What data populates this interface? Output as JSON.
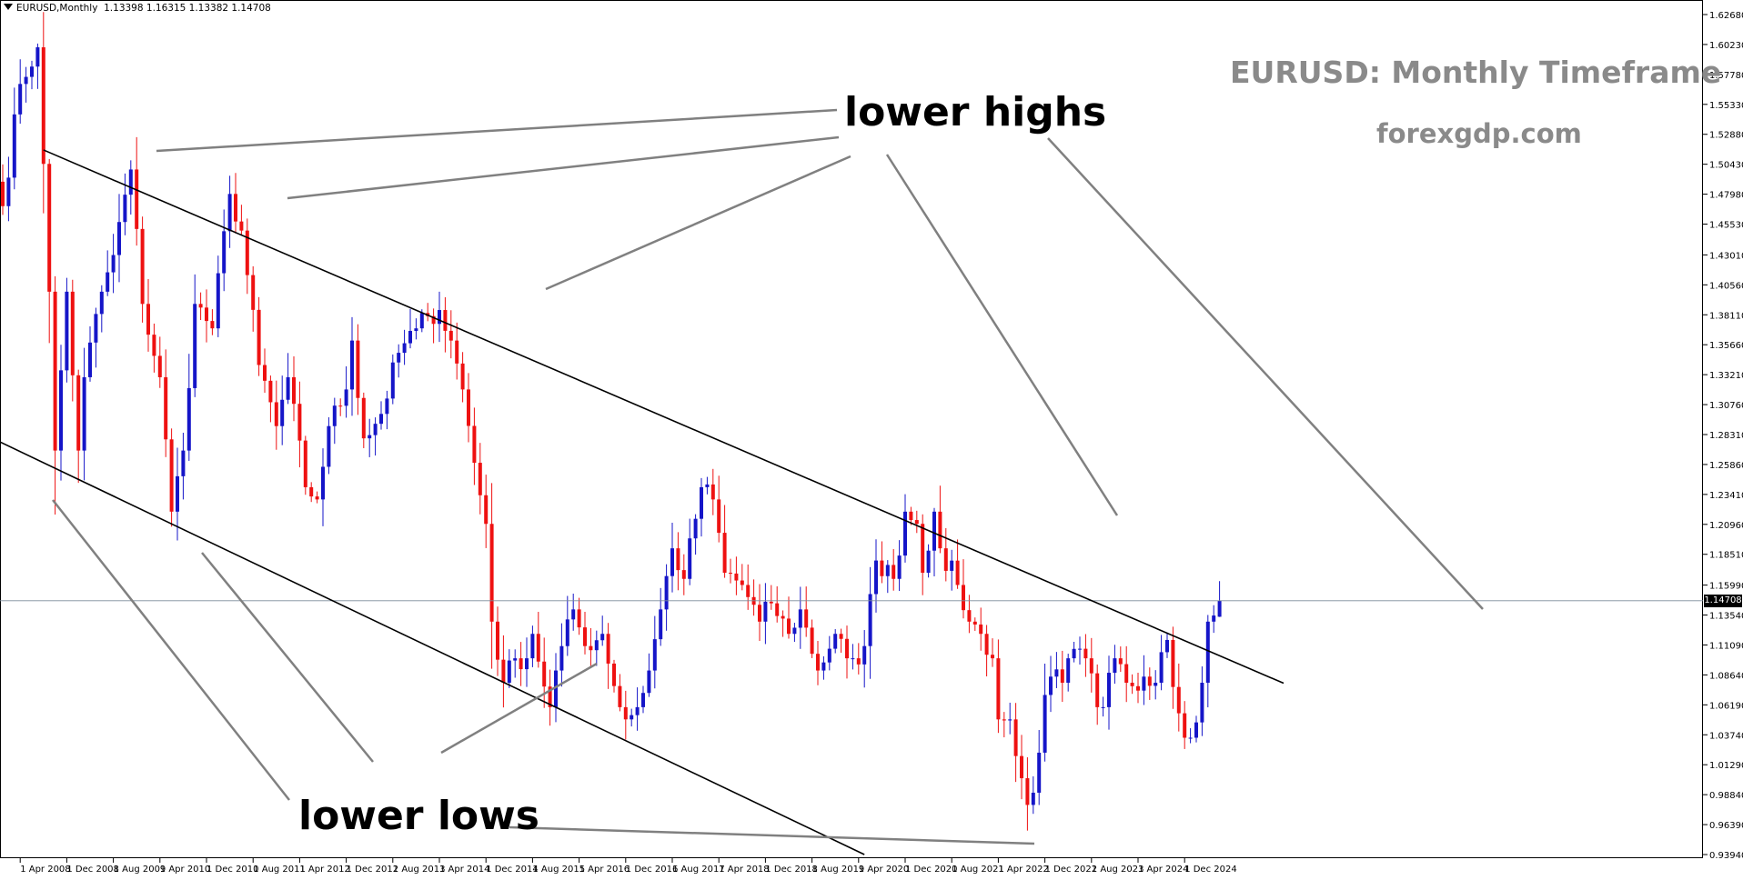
{
  "header": {
    "symbol_label": "EURUSD,Monthly",
    "ohlc_label": "1.13398 1.16315 1.13382 1.14708"
  },
  "annotations": {
    "title": "EURUSD: Monthly Timeframe",
    "subtitle": "forexgdp.com",
    "lower_highs": "lower highs",
    "lower_lows": "lower lows"
  },
  "colors": {
    "bull": "#1515c8",
    "bear": "#ee1111",
    "trendline": "#000000",
    "pointer": "#808080",
    "title": "#8a8a8a"
  },
  "chart_data": {
    "type": "candlestick",
    "title": "EURUSD: Monthly Timeframe",
    "timeframe": "Monthly",
    "ylim": [
      0.9394,
      1.6268
    ],
    "y_ticks": [
      "1.62680",
      "1.60230",
      "1.57780",
      "1.55330",
      "1.52880",
      "1.50430",
      "1.47980",
      "1.45530",
      "1.43010",
      "1.40560",
      "1.38110",
      "1.35660",
      "1.33210",
      "1.30760",
      "1.28310",
      "1.25860",
      "1.23410",
      "1.20960",
      "1.18510",
      "1.15990",
      "1.13540",
      "1.11090",
      "1.08640",
      "1.06190",
      "1.03740",
      "1.01290",
      "0.98840",
      "0.96390",
      "0.93940"
    ],
    "x_ticks": [
      "1 Apr 2008",
      "1 Dec 2008",
      "1 Aug 2009",
      "1 Apr 2010",
      "1 Dec 2010",
      "1 Aug 2011",
      "1 Apr 2012",
      "1 Dec 2012",
      "1 Aug 2013",
      "1 Apr 2014",
      "1 Dec 2014",
      "1 Aug 2015",
      "1 Apr 2016",
      "1 Dec 2016",
      "1 Aug 2017",
      "1 Apr 2018",
      "1 Dec 2018",
      "1 Aug 2019",
      "1 Apr 2020",
      "1 Dec 2020",
      "1 Aug 2021",
      "1 Apr 2022",
      "1 Dec 2022",
      "1 Aug 2023",
      "1 Apr 2024",
      "1 Dec 2024"
    ],
    "current_price": "1.14708",
    "x_start": "2008-01",
    "anchors": [
      [
        "2008-01",
        1.47
      ],
      [
        "2008-04",
        1.57
      ],
      [
        "2008-07",
        1.6
      ],
      [
        "2008-09",
        1.4
      ],
      [
        "2008-10",
        1.27
      ],
      [
        "2008-12",
        1.4
      ],
      [
        "2009-02",
        1.27
      ],
      [
        "2009-03",
        1.33
      ],
      [
        "2009-06",
        1.4
      ],
      [
        "2009-08",
        1.43
      ],
      [
        "2009-11",
        1.5
      ],
      [
        "2010-01",
        1.39
      ],
      [
        "2010-04",
        1.33
      ],
      [
        "2010-06",
        1.22
      ],
      [
        "2010-08",
        1.27
      ],
      [
        "2010-10",
        1.39
      ],
      [
        "2011-01",
        1.37
      ],
      [
        "2011-04",
        1.48
      ],
      [
        "2011-06",
        1.45
      ],
      [
        "2011-09",
        1.34
      ],
      [
        "2011-12",
        1.29
      ],
      [
        "2012-02",
        1.33
      ],
      [
        "2012-05",
        1.24
      ],
      [
        "2012-07",
        1.23
      ],
      [
        "2012-09",
        1.29
      ],
      [
        "2012-12",
        1.32
      ],
      [
        "2013-01",
        1.36
      ],
      [
        "2013-03",
        1.28
      ],
      [
        "2013-06",
        1.3
      ],
      [
        "2013-09",
        1.35
      ],
      [
        "2013-12",
        1.37
      ],
      [
        "2014-02",
        1.38
      ],
      [
        "2014-04",
        1.385
      ],
      [
        "2014-06",
        1.36
      ],
      [
        "2014-08",
        1.32
      ],
      [
        "2014-10",
        1.26
      ],
      [
        "2014-12",
        1.21
      ],
      [
        "2015-01",
        1.13
      ],
      [
        "2015-03",
        1.08
      ],
      [
        "2015-05",
        1.1
      ],
      [
        "2015-07",
        1.1
      ],
      [
        "2015-08",
        1.12
      ],
      [
        "2015-11",
        1.06
      ],
      [
        "2015-12",
        1.09
      ],
      [
        "2016-03",
        1.14
      ],
      [
        "2016-05",
        1.11
      ],
      [
        "2016-08",
        1.12
      ],
      [
        "2016-11",
        1.06
      ],
      [
        "2016-12",
        1.05
      ],
      [
        "2017-02",
        1.06
      ],
      [
        "2017-04",
        1.09
      ],
      [
        "2017-06",
        1.14
      ],
      [
        "2017-08",
        1.19
      ],
      [
        "2017-10",
        1.165
      ],
      [
        "2018-01",
        1.24
      ],
      [
        "2018-03",
        1.23
      ],
      [
        "2018-05",
        1.17
      ],
      [
        "2018-08",
        1.16
      ],
      [
        "2018-11",
        1.13
      ],
      [
        "2019-01",
        1.145
      ],
      [
        "2019-04",
        1.12
      ],
      [
        "2019-06",
        1.14
      ],
      [
        "2019-09",
        1.09
      ],
      [
        "2019-12",
        1.12
      ],
      [
        "2020-02",
        1.1
      ],
      [
        "2020-03",
        1.1
      ],
      [
        "2020-04",
        1.095
      ],
      [
        "2020-05",
        1.11
      ],
      [
        "2020-07",
        1.18
      ],
      [
        "2020-10",
        1.165
      ],
      [
        "2020-12",
        1.22
      ],
      [
        "2021-02",
        1.21
      ],
      [
        "2021-03",
        1.17
      ],
      [
        "2021-05",
        1.22
      ],
      [
        "2021-06",
        1.19
      ],
      [
        "2021-09",
        1.16
      ],
      [
        "2021-11",
        1.13
      ],
      [
        "2022-01",
        1.12
      ],
      [
        "2022-03",
        1.1
      ],
      [
        "2022-04",
        1.05
      ],
      [
        "2022-06",
        1.05
      ],
      [
        "2022-07",
        1.02
      ],
      [
        "2022-09",
        0.98
      ],
      [
        "2022-10",
        0.99
      ],
      [
        "2022-12",
        1.07
      ],
      [
        "2023-01",
        1.085
      ],
      [
        "2023-03",
        1.08
      ],
      [
        "2023-04",
        1.1
      ],
      [
        "2023-07",
        1.1
      ],
      [
        "2023-09",
        1.06
      ],
      [
        "2023-10",
        1.06
      ],
      [
        "2023-12",
        1.1
      ],
      [
        "2024-02",
        1.08
      ],
      [
        "2024-05",
        1.085
      ],
      [
        "2024-07",
        1.08
      ],
      [
        "2024-08",
        1.105
      ],
      [
        "2024-09",
        1.115
      ],
      [
        "2024-11",
        1.055
      ],
      [
        "2024-12",
        1.035
      ],
      [
        "2025-01",
        1.035
      ],
      [
        "2025-03",
        1.08
      ],
      [
        "2025-04",
        1.13
      ],
      [
        "2025-05",
        1.135
      ],
      [
        "2025-06",
        1.147
      ]
    ],
    "last_candle": {
      "open": 1.13398,
      "high": 1.16315,
      "low": 1.13382,
      "close": 1.14708
    },
    "trendlines": [
      {
        "from": [
          "2008-08",
          1.516
        ],
        "to": [
          "2026-05",
          1.0796
        ]
      },
      {
        "from": [
          "2007-11",
          1.2805
        ],
        "to": [
          "2020-05",
          0.9394
        ]
      }
    ],
    "horizontal_line": 1.14708,
    "grid": false,
    "legend": "none"
  }
}
